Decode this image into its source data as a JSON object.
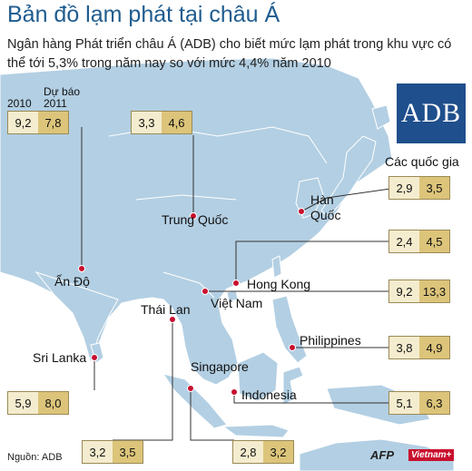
{
  "title": "Bản đồ lạm phát tại châu Á",
  "subtitle": "Ngân hàng Phát triển châu Á (ADB) cho biết mức lạm phát trong khu vực có thể tới 5,3% trong năm nay so với mức 4,4% năm 2010",
  "legend": {
    "col_2010": "2010",
    "col_2011_line1": "Dự báo",
    "col_2011_line2": "2011"
  },
  "logo": "ADB",
  "source": "Nguồn: ADB",
  "credits": {
    "afp": "AFP",
    "vietnamnet": "Vietnam+"
  },
  "colors": {
    "sea": "#ffffff",
    "land": "#b3cfe3",
    "border": "#ffffff",
    "title": "#1f5c8f",
    "box_light": "#f4ecce",
    "box_dark": "#dcc47a",
    "dot": "#c8102e"
  },
  "countries": {
    "india": {
      "name": "Ấn Độ",
      "v2010": "9,2",
      "v2011": "7,8"
    },
    "china": {
      "name": "Trung Quốc",
      "v2010": "3,3",
      "v2011": "4,6"
    },
    "korea": {
      "name_line1": "Hàn",
      "name_line2": "Quốc",
      "v2010": "2,9",
      "v2011": "3,5"
    },
    "hongkong": {
      "name": "Hong Kong",
      "v2010": "2,4",
      "v2011": "4,5"
    },
    "vietnam": {
      "name": "Việt Nam",
      "v2010": "9,2",
      "v2011": "13,3"
    },
    "philippines": {
      "name": "Philippines",
      "v2010": "3,8",
      "v2011": "4,9"
    },
    "indonesia": {
      "name": "Indonesia",
      "v2010": "5,1",
      "v2011": "6,3"
    },
    "srilanka": {
      "name": "Sri Lanka",
      "v2010": "5,9",
      "v2011": "8,0"
    },
    "thailand": {
      "name": "Thái Lan",
      "v2010": "3,2",
      "v2011": "3,5"
    },
    "singapore": {
      "name": "Singapore",
      "v2010": "2,8",
      "v2011": "3,2"
    }
  },
  "other_label": "Các quốc gia"
}
